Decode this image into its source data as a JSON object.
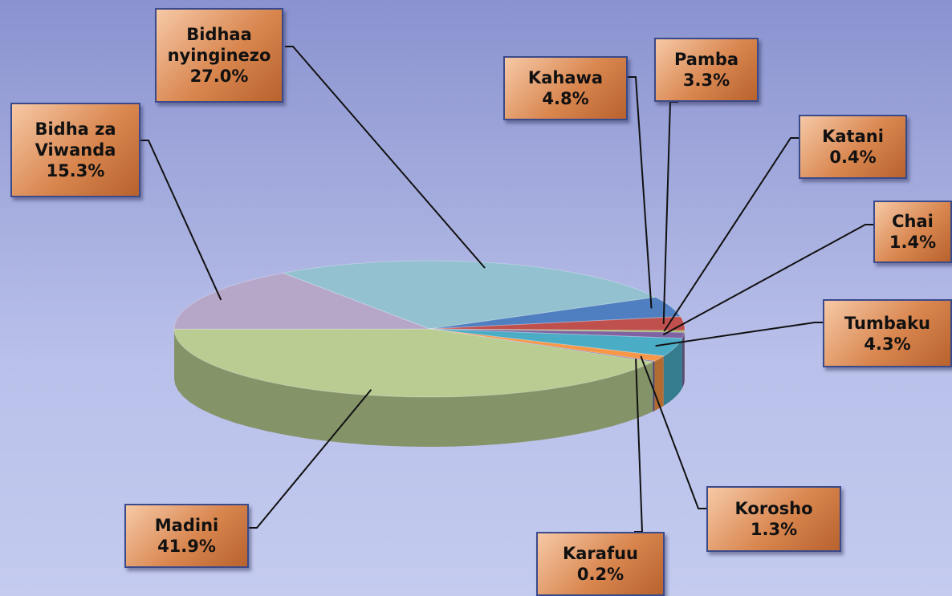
{
  "chart_data": {
    "type": "pie",
    "categories": [
      "Bidhaa nyinginezo",
      "Kahawa",
      "Pamba",
      "Katani",
      "Chai",
      "Tumbaku",
      "Korosho",
      "Karafuu",
      "Madini",
      "Bidha za Viwanda"
    ],
    "values": [
      27.0,
      4.8,
      3.3,
      0.4,
      1.4,
      4.3,
      1.3,
      0.2,
      41.9,
      15.3
    ],
    "value_labels": [
      "27.0%",
      "4.8%",
      "3.3%",
      "0.4%",
      "1.4%",
      "4.3%",
      "1.3%",
      "0.2%",
      "41.9%",
      "15.3%"
    ],
    "colors": [
      "#93c1cf",
      "#4f7fc0",
      "#c0504d",
      "#9bbb59",
      "#8064a2",
      "#4bacc6",
      "#f79646",
      "#6b5a9a",
      "#b9cc92",
      "#b6a6c8"
    ]
  }
}
